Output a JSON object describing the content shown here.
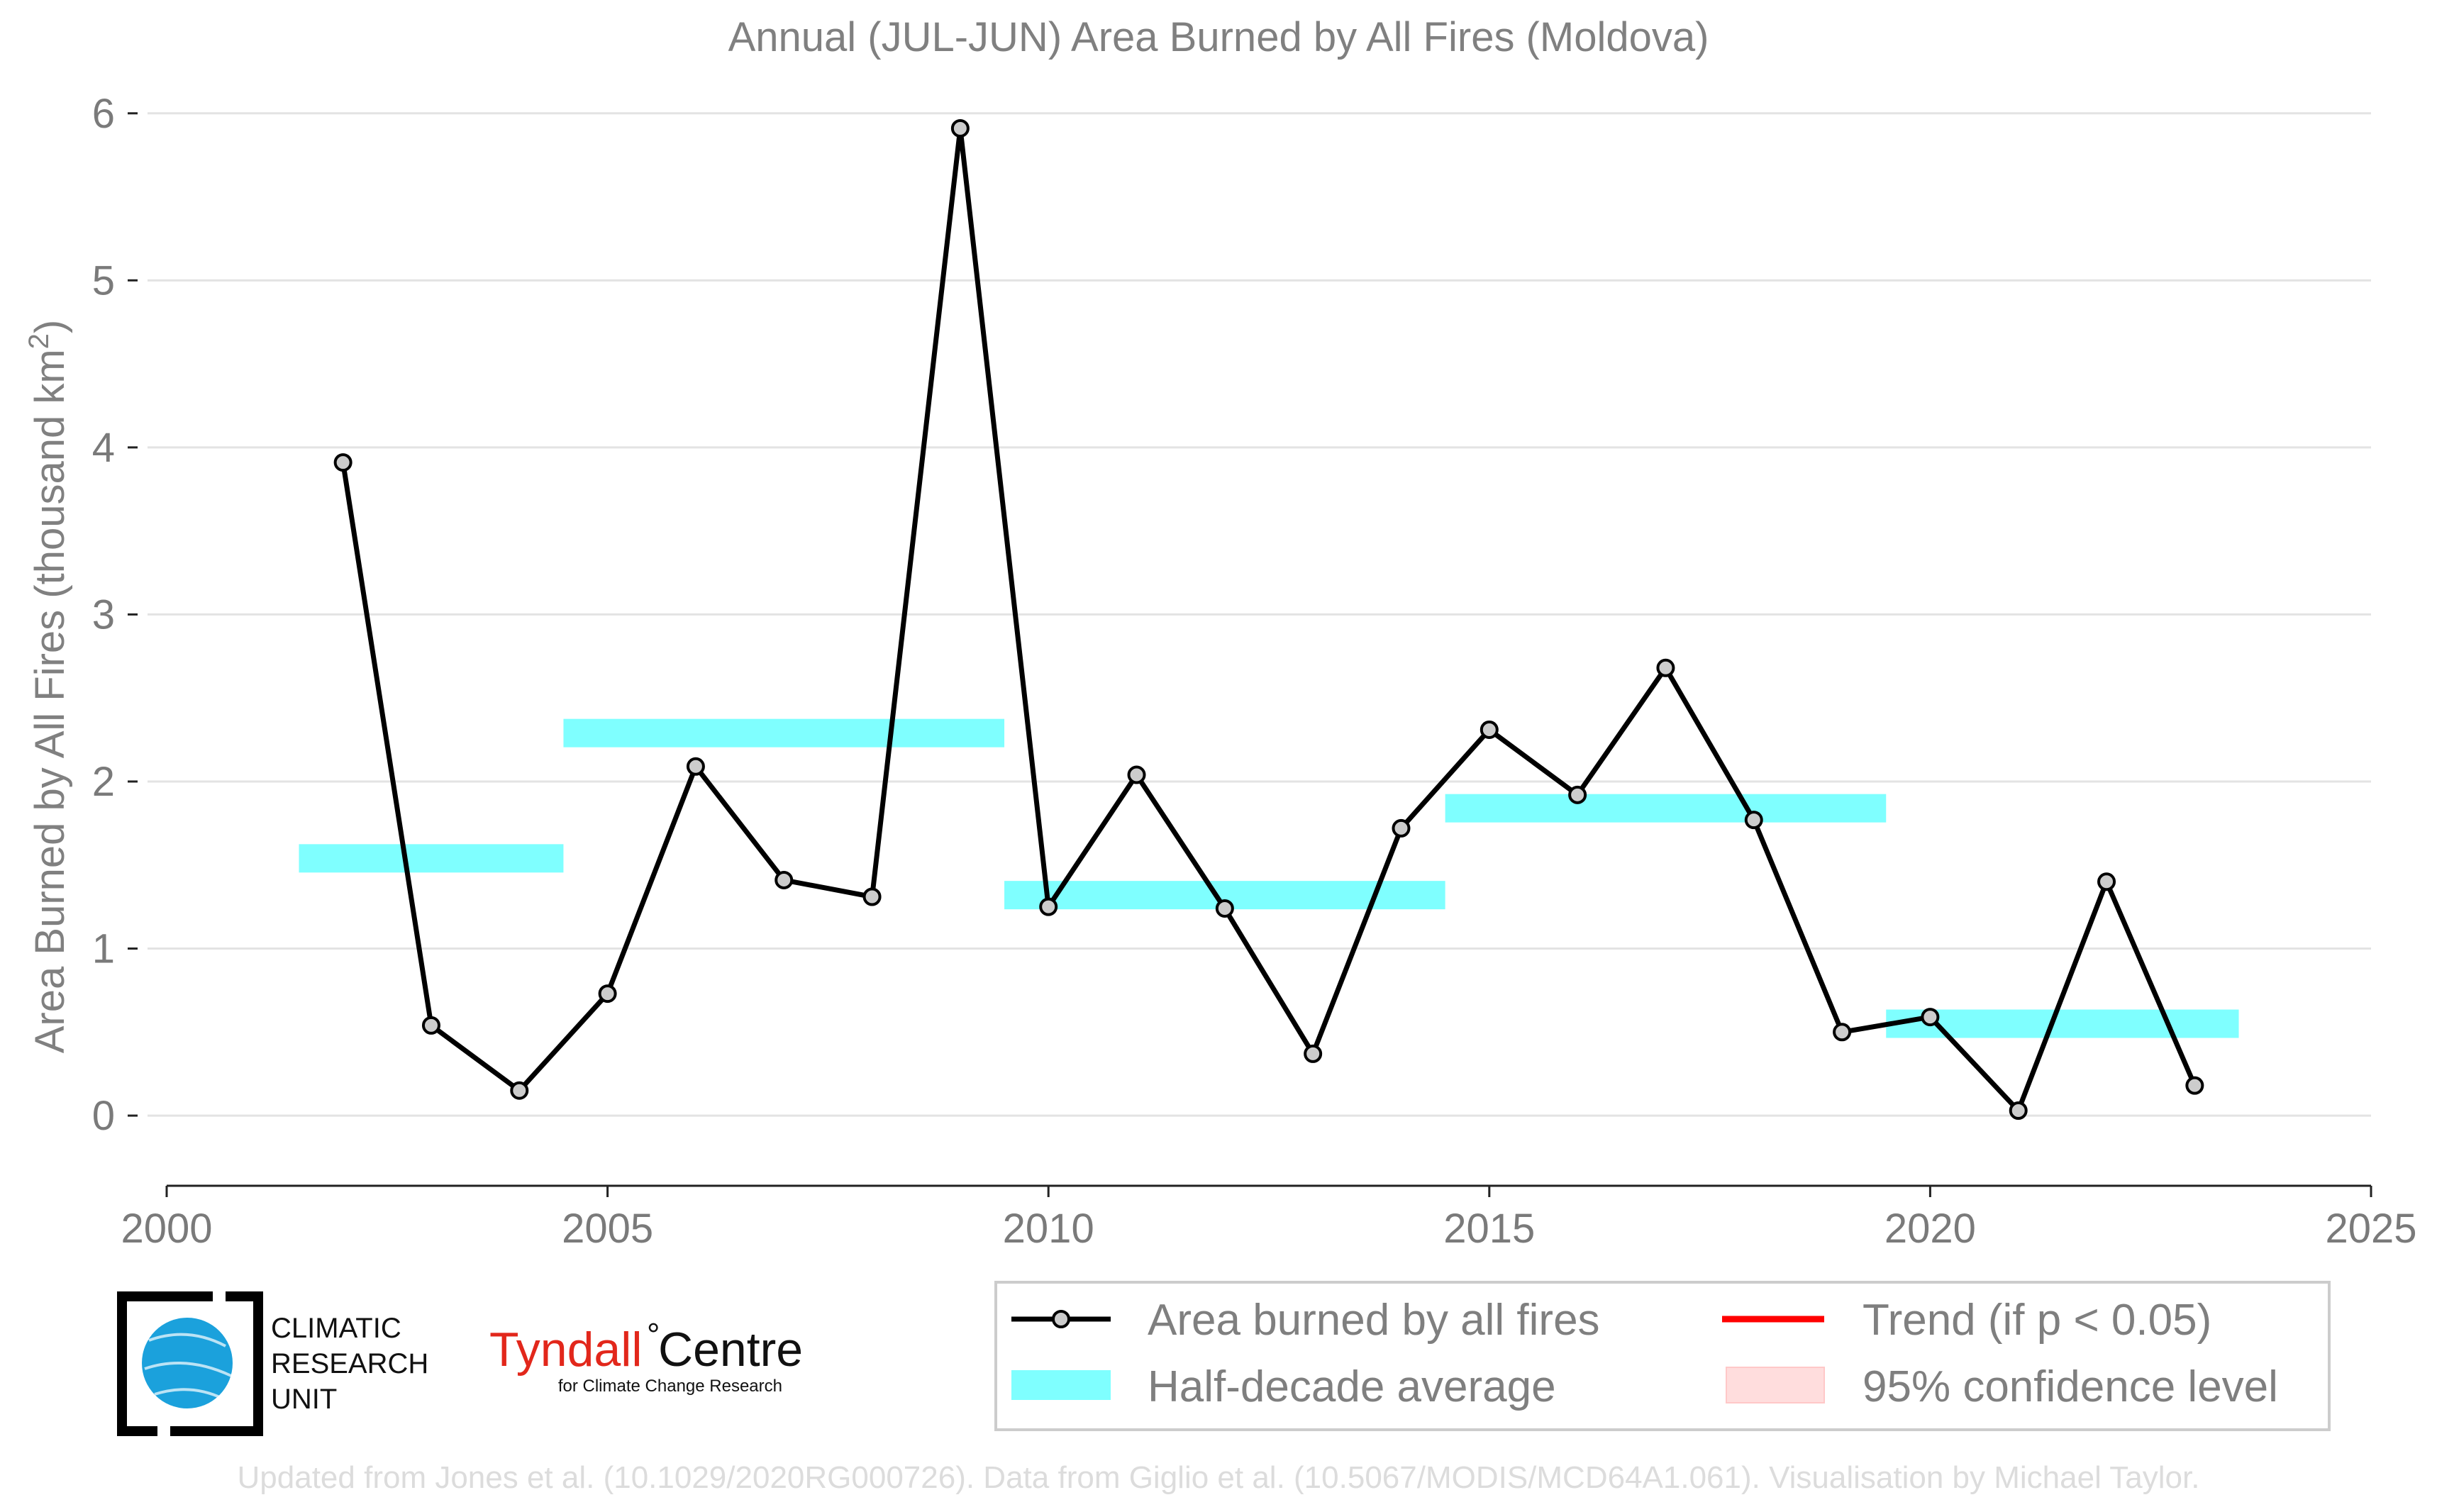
{
  "chart_data": {
    "type": "line",
    "title": "Annual (JUL-JUN) Area Burned by All Fires (Moldova)",
    "ylabel": "Area Burned by All Fires (thousand km",
    "ylabel_sup": "2",
    "ylabel_close": ")",
    "xlim": [
      2000,
      2025
    ],
    "ylim": [
      -0.42,
      6.05
    ],
    "x_ticks": [
      2000,
      2005,
      2010,
      2015,
      2020,
      2025
    ],
    "y_ticks": [
      0,
      1,
      2,
      3,
      4,
      5,
      6
    ],
    "grid": "horizontal",
    "series": [
      {
        "name": "Area burned by all fires",
        "color": "#000000",
        "marker_fill": "#cccccc",
        "x": [
          2002,
          2003,
          2004,
          2005,
          2006,
          2007,
          2008,
          2009,
          2010,
          2011,
          2012,
          2013,
          2014,
          2015,
          2016,
          2017,
          2018,
          2019,
          2020,
          2021,
          2022,
          2023
        ],
        "y": [
          3.91,
          0.54,
          0.15,
          0.73,
          2.09,
          1.41,
          1.31,
          5.91,
          1.25,
          2.04,
          1.24,
          0.37,
          1.72,
          2.31,
          1.92,
          2.68,
          1.77,
          0.5,
          0.59,
          0.03,
          1.4,
          0.18
        ]
      },
      {
        "name": "Half-decade average",
        "color": "#7fffff",
        "segments": [
          {
            "x0": 2001.5,
            "x1": 2004.5,
            "y": 1.54
          },
          {
            "x0": 2004.5,
            "x1": 2009.5,
            "y": 2.29
          },
          {
            "x0": 2009.5,
            "x1": 2014.5,
            "y": 1.32
          },
          {
            "x0": 2014.5,
            "x1": 2019.5,
            "y": 1.84
          },
          {
            "x0": 2019.5,
            "x1": 2023.5,
            "y": 0.55
          }
        ]
      }
    ],
    "legend": {
      "placement": "bottom-right",
      "items": [
        {
          "label": "Area burned by all fires",
          "kind": "line-marker",
          "color": "#000000"
        },
        {
          "label": "Trend (if p < 0.05)",
          "kind": "line",
          "color": "#ff0000"
        },
        {
          "label": "Half-decade average",
          "kind": "band",
          "color": "#7fffff"
        },
        {
          "label": "95% confidence level",
          "kind": "band",
          "color": "#ffdddd"
        }
      ]
    }
  },
  "logos": {
    "cru": {
      "lines": [
        "CLIMATIC",
        "RESEARCH",
        "UNIT"
      ],
      "color": "#1ba1dc"
    },
    "tyndall": {
      "name": "Tyndall",
      "degree": "°",
      "centre": "Centre",
      "subtitle": "for Climate Change Research",
      "color": "#e2271b"
    }
  },
  "footer": "Updated from Jones et al. (10.1029/2020RG000726). Data from Giglio et al. (10.5067/MODIS/MCD64A1.061). Visualisation by Michael Taylor."
}
